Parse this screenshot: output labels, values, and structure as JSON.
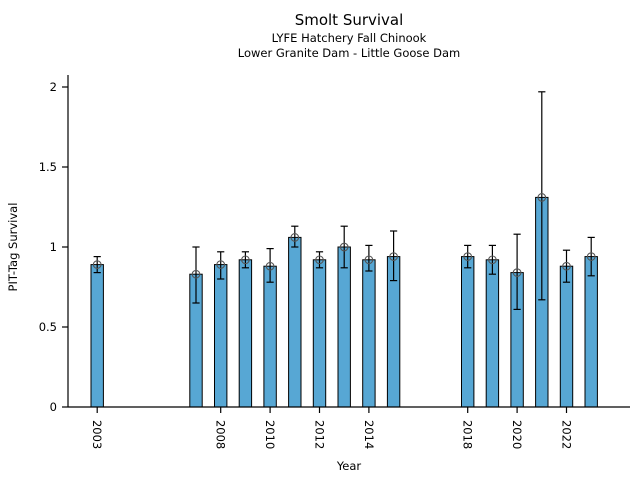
{
  "chart_data": {
    "type": "bar",
    "title": "Smolt Survival",
    "subtitle_line1": "LYFE Hatchery Fall Chinook",
    "subtitle_line2": "Lower Granite Dam - Little Goose Dam",
    "xlabel": "Year",
    "ylabel": "PIT-Tag Survival",
    "ylim": [
      0,
      2.07
    ],
    "yticks": [
      0,
      0.5,
      1,
      1.5,
      2
    ],
    "ytick_labels": [
      "0",
      "0.5",
      "1",
      "1.5",
      "2"
    ],
    "xtick_years": [
      2003,
      2008,
      2010,
      2012,
      2014,
      2018,
      2020,
      2022
    ],
    "grid": false,
    "legend": "none",
    "bar_color": "#57a7d4",
    "edge_color": "#000000",
    "errorbar_color": "#000000",
    "marker": "open-circle",
    "marker_color": "#555555",
    "series": [
      {
        "year": 2003,
        "value": 0.89,
        "err_lo": 0.84,
        "err_hi": 0.94
      },
      {
        "year": 2007,
        "value": 0.83,
        "err_lo": 0.65,
        "err_hi": 1.0
      },
      {
        "year": 2008,
        "value": 0.89,
        "err_lo": 0.8,
        "err_hi": 0.97
      },
      {
        "year": 2009,
        "value": 0.92,
        "err_lo": 0.87,
        "err_hi": 0.97
      },
      {
        "year": 2010,
        "value": 0.88,
        "err_lo": 0.78,
        "err_hi": 0.99
      },
      {
        "year": 2011,
        "value": 1.06,
        "err_lo": 1.0,
        "err_hi": 1.13
      },
      {
        "year": 2012,
        "value": 0.92,
        "err_lo": 0.87,
        "err_hi": 0.97
      },
      {
        "year": 2013,
        "value": 1.0,
        "err_lo": 0.87,
        "err_hi": 1.13
      },
      {
        "year": 2014,
        "value": 0.92,
        "err_lo": 0.85,
        "err_hi": 1.01
      },
      {
        "year": 2015,
        "value": 0.94,
        "err_lo": 0.79,
        "err_hi": 1.1
      },
      {
        "year": 2018,
        "value": 0.94,
        "err_lo": 0.87,
        "err_hi": 1.01
      },
      {
        "year": 2019,
        "value": 0.92,
        "err_lo": 0.83,
        "err_hi": 1.01
      },
      {
        "year": 2020,
        "value": 0.84,
        "err_lo": 0.61,
        "err_hi": 1.08
      },
      {
        "year": 2021,
        "value": 1.31,
        "err_lo": 0.67,
        "err_hi": 1.97
      },
      {
        "year": 2022,
        "value": 0.88,
        "err_lo": 0.78,
        "err_hi": 0.98
      },
      {
        "year": 2023,
        "value": 0.94,
        "err_lo": 0.82,
        "err_hi": 1.06
      }
    ]
  }
}
